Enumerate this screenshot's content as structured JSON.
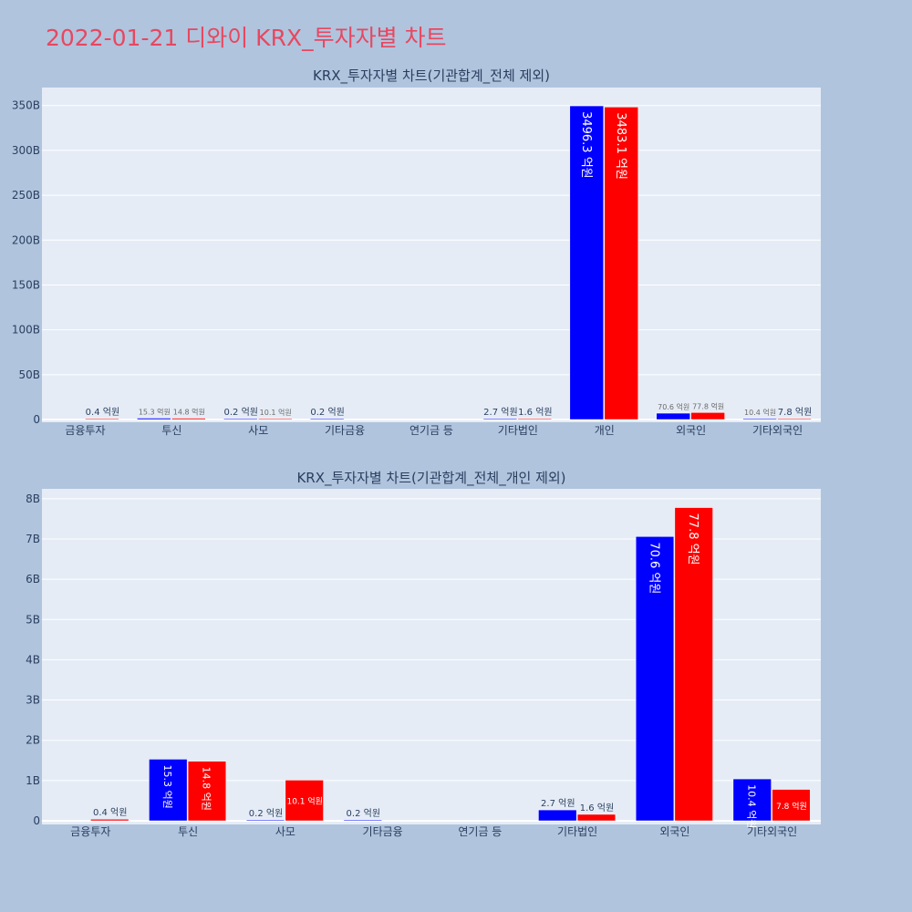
{
  "page_title": "2022-01-21 디와이 KRX_투자자별 차트",
  "colors": {
    "background": "#b0c4de",
    "plot_background": "#e5ecf6",
    "title": "#e8475f",
    "series_buy": "#0000ff",
    "series_sell": "#ff0000",
    "text": "#2a3f5f"
  },
  "chart_data": [
    {
      "type": "bar",
      "title": "KRX_투자자별 차트(기관합계_전체 제외)",
      "categories": [
        "금융투자",
        "투신",
        "사모",
        "기타금융",
        "연기금 등",
        "기타법인",
        "개인",
        "외국인",
        "기타외국인"
      ],
      "series": [
        {
          "color": "#0000ff",
          "values": [
            0,
            1.53,
            0.02,
            0.02,
            0,
            0.27,
            349.63,
            7.06,
            1.04
          ],
          "labels": [
            "",
            "15.3 억원",
            "0.2 억원",
            "0.2 억원",
            "",
            "2.7 억원",
            "3496.3 억원",
            "70.6 억원",
            "10.4 억원"
          ]
        },
        {
          "color": "#ff0000",
          "values": [
            0.04,
            1.48,
            1.01,
            0,
            0,
            0.16,
            348.31,
            7.78,
            0.78
          ],
          "labels": [
            "0.4 억원",
            "14.8 억원",
            "10.1 억원",
            "",
            "",
            "1.6 억원",
            "3483.1 억원",
            "77.8 억원",
            "7.8 억원"
          ]
        }
      ],
      "yticks": [
        0,
        50,
        100,
        150,
        200,
        250,
        300,
        350
      ],
      "ytick_labels": [
        "0",
        "50B",
        "100B",
        "150B",
        "200B",
        "250B",
        "300B",
        "350B"
      ],
      "ylim": [
        0,
        368
      ],
      "unit": "B"
    },
    {
      "type": "bar",
      "title": "KRX_투자자별 차트(기관합계_전체_개인 제외)",
      "categories": [
        "금융투자",
        "투신",
        "사모",
        "기타금융",
        "연기금 등",
        "기타법인",
        "외국인",
        "기타외국인"
      ],
      "series": [
        {
          "color": "#0000ff",
          "values": [
            0,
            1.53,
            0.02,
            0.02,
            0,
            0.27,
            7.06,
            1.04
          ],
          "labels": [
            "",
            "15.3 억원",
            "0.2 억원",
            "0.2 억원",
            "",
            "2.7 억원",
            "70.6 억원",
            "10.4 억원"
          ]
        },
        {
          "color": "#ff0000",
          "values": [
            0.04,
            1.48,
            1.01,
            0,
            0,
            0.16,
            7.78,
            0.78
          ],
          "labels": [
            "0.4 억원",
            "14.8 억원",
            "10.1 억원",
            "",
            "",
            "1.6 억원",
            "77.8 억원",
            "7.8 억원"
          ]
        }
      ],
      "yticks": [
        0,
        1,
        2,
        3,
        4,
        5,
        6,
        7,
        8
      ],
      "ytick_labels": [
        "0",
        "1B",
        "2B",
        "3B",
        "4B",
        "5B",
        "6B",
        "7B",
        "8B"
      ],
      "ylim": [
        0,
        8.2
      ],
      "unit": "B"
    }
  ]
}
